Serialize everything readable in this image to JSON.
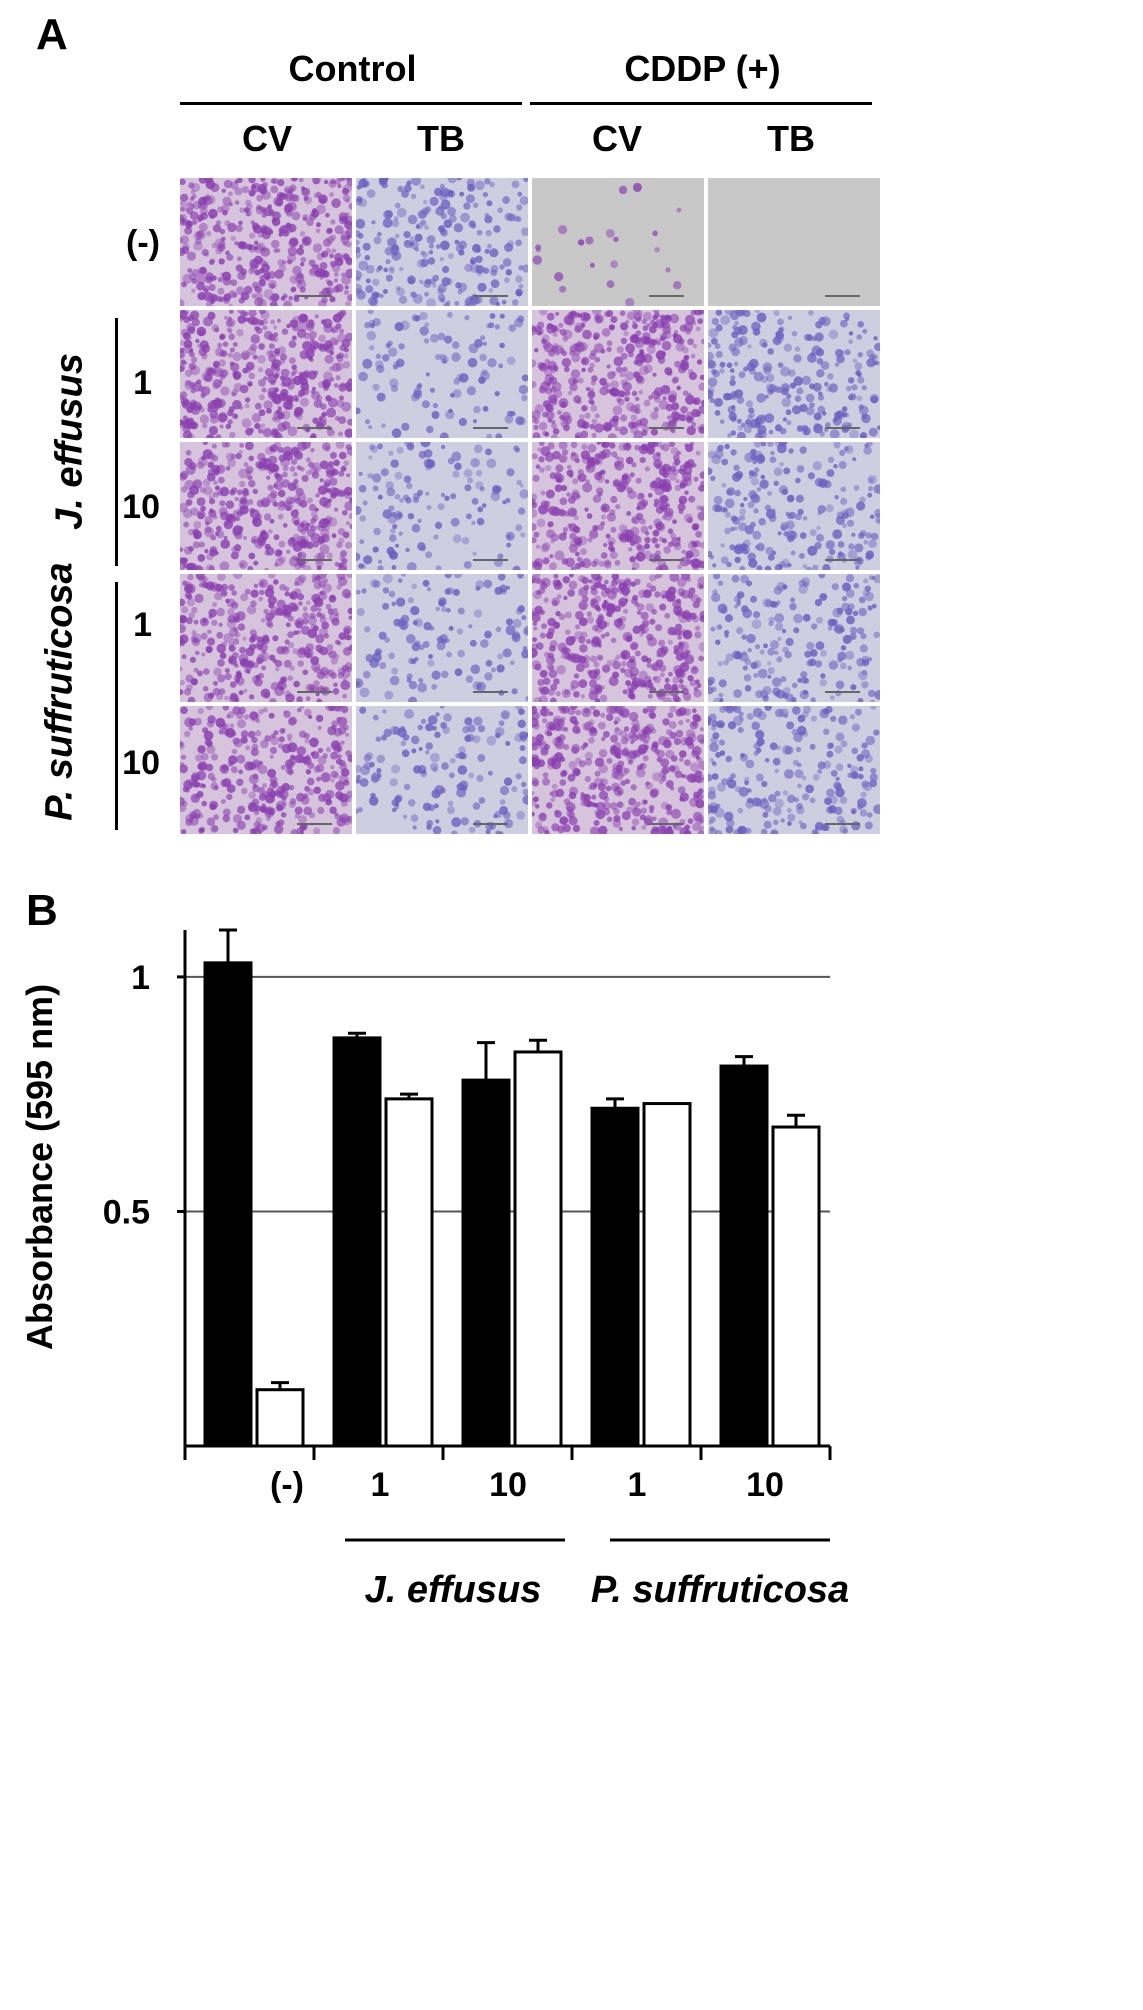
{
  "panel_a": {
    "letter": "A",
    "groups": [
      "Control",
      "CDDP (+)"
    ],
    "columns": [
      "CV",
      "TB",
      "CV",
      "TB"
    ],
    "rows": [
      "(-)",
      "1",
      "10",
      "1",
      "10"
    ],
    "species": [
      "J. effusus",
      "P. suffruticosa"
    ],
    "stain_levels": [
      [
        0.95,
        0.55,
        0.05,
        0.0
      ],
      [
        0.95,
        0.25,
        0.9,
        0.55
      ],
      [
        0.9,
        0.3,
        0.85,
        0.5
      ],
      [
        0.85,
        0.3,
        0.9,
        0.45
      ],
      [
        0.75,
        0.35,
        0.9,
        0.5
      ]
    ],
    "colors": {
      "cv": "#8a3fb0",
      "tb": "#6a5fc0",
      "background": "#c8c8c8"
    }
  },
  "panel_b": {
    "letter": "B",
    "ylabel": "Absorbance (595 nm)",
    "x_tick_labels": [
      "(-)",
      "1",
      "10",
      "1",
      "10"
    ],
    "species": [
      "J. effusus",
      "P. suffruticosa"
    ]
  },
  "chart_data": {
    "type": "bar",
    "categories": [
      "(-)",
      "J. effusus 1",
      "J. effusus 10",
      "P. suffruticosa 1",
      "P. suffruticosa 10"
    ],
    "series": [
      {
        "fill": "#000000",
        "values": [
          1.03,
          0.87,
          0.78,
          0.72,
          0.81
        ],
        "errors": [
          0.07,
          0.01,
          0.08,
          0.02,
          0.02
        ]
      },
      {
        "fill": "#ffffff",
        "values": [
          0.12,
          0.74,
          0.84,
          0.73,
          0.68
        ],
        "errors": [
          0.015,
          0.01,
          0.025,
          0.0,
          0.025
        ]
      }
    ],
    "ylabel": "Absorbance (595 nm)",
    "ytick_labels": [
      "0.5",
      "1"
    ],
    "ylim": [
      0,
      1.1
    ],
    "gridlines": [
      0.5,
      1.0
    ]
  }
}
